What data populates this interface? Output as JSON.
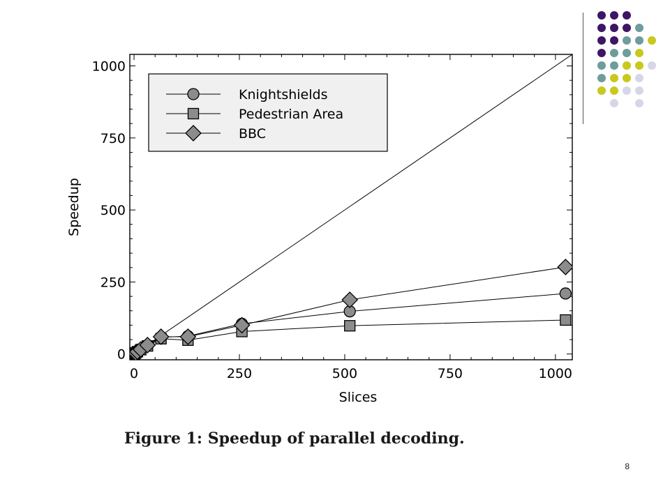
{
  "caption": "Figure 1: Speedup of parallel decoding.",
  "page_number": "8",
  "decoration": {
    "colors": [
      "#3d1666",
      "#6f9c9c",
      "#c8c81e",
      "#d6d6e8"
    ],
    "grid": [
      [
        0,
        0,
        0,
        -1,
        -1
      ],
      [
        0,
        0,
        0,
        1,
        -1
      ],
      [
        0,
        0,
        1,
        1,
        2
      ],
      [
        0,
        1,
        1,
        2,
        -1
      ],
      [
        1,
        1,
        2,
        2,
        3
      ],
      [
        1,
        2,
        2,
        3,
        -1
      ],
      [
        2,
        2,
        3,
        3,
        -1
      ],
      [
        -1,
        3,
        -1,
        3,
        -1
      ]
    ]
  },
  "chart_data": {
    "type": "line",
    "title": "",
    "xlabel": "Slices",
    "ylabel": "Speedup",
    "xlim": [
      -10,
      1040
    ],
    "ylim": [
      -20,
      1040
    ],
    "xticks": [
      0,
      250,
      500,
      750,
      1000
    ],
    "yticks": [
      0,
      250,
      500,
      750,
      1000
    ],
    "grid": false,
    "legend_position": "top-left",
    "reference_line": {
      "x": [
        0,
        1040
      ],
      "y": [
        0,
        1040
      ]
    },
    "series": [
      {
        "name": "Knightshields",
        "marker": "circle",
        "x": [
          1,
          2,
          4,
          8,
          16,
          32,
          64,
          128,
          256,
          512,
          1024
        ],
        "y": [
          1,
          2,
          4,
          8,
          15,
          30,
          58,
          62,
          105,
          148,
          210
        ]
      },
      {
        "name": "Pedestrian Area",
        "marker": "square",
        "x": [
          1,
          2,
          4,
          8,
          16,
          32,
          64,
          128,
          256,
          512,
          1024
        ],
        "y": [
          1,
          2,
          4,
          8,
          15,
          28,
          53,
          48,
          78,
          98,
          118
        ]
      },
      {
        "name": "BBC",
        "marker": "diamond",
        "x": [
          1,
          2,
          4,
          8,
          16,
          32,
          64,
          128,
          256,
          512,
          1024
        ],
        "y": [
          1,
          2,
          4,
          8,
          16,
          31,
          60,
          60,
          100,
          188,
          302
        ]
      }
    ]
  }
}
